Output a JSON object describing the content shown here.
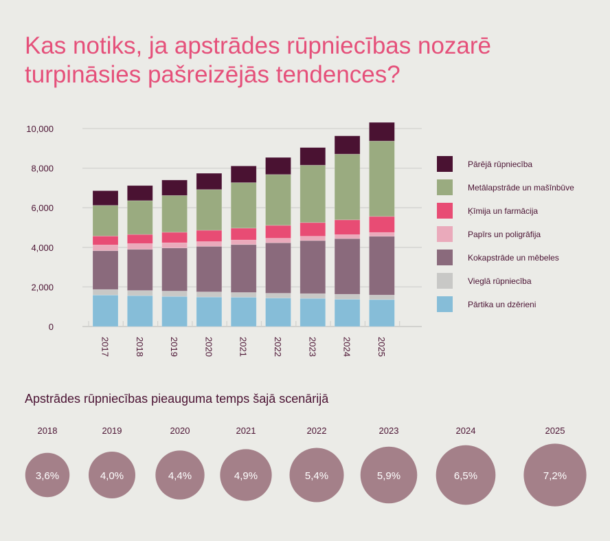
{
  "title": "Kas notiks, ja apstrādes rūpniecības nozarē turpināsies pašreizējās tendences?",
  "chart_data": [
    {
      "type": "bar",
      "stacked": true,
      "categories": [
        "2017",
        "2018",
        "2019",
        "2020",
        "2021",
        "2022",
        "2023",
        "2024",
        "2025"
      ],
      "ylim": [
        0,
        10500
      ],
      "yticks": [
        0,
        2000,
        4000,
        6000,
        8000,
        10000
      ],
      "ytick_labels": [
        "0",
        "2,000",
        "4,000",
        "6,000",
        "8,000",
        "10,000"
      ],
      "grid": true,
      "legend_position": "right",
      "series": [
        {
          "name": "Pārtika un dzērieni",
          "color": "#86bdd8",
          "values": [
            1590,
            1560,
            1520,
            1490,
            1480,
            1440,
            1420,
            1380,
            1360
          ]
        },
        {
          "name": "Vieglā rūpniecība",
          "color": "#c8c8c6",
          "values": [
            280,
            260,
            270,
            260,
            240,
            240,
            240,
            250,
            230
          ]
        },
        {
          "name": "Kokapstrāde un mēbeles",
          "color": "#8a6a7c",
          "values": [
            1960,
            2080,
            2180,
            2300,
            2420,
            2550,
            2680,
            2810,
            2970
          ]
        },
        {
          "name": "Papīrs un poligrāfija",
          "color": "#eaaabb",
          "values": [
            290,
            290,
            260,
            240,
            230,
            230,
            220,
            200,
            190
          ]
        },
        {
          "name": "Ķīmija un farmācija",
          "color": "#e84c74",
          "values": [
            450,
            460,
            530,
            570,
            600,
            650,
            690,
            750,
            810
          ]
        },
        {
          "name": "Metālapstrāde un mašīnbūve",
          "color": "#9aab80",
          "values": [
            1550,
            1710,
            1860,
            2060,
            2300,
            2570,
            2900,
            3320,
            3810
          ]
        },
        {
          "name": "Pārējā rūpniecība",
          "color": "#4a1232",
          "values": [
            740,
            760,
            780,
            820,
            840,
            860,
            890,
            920,
            940
          ]
        }
      ]
    },
    {
      "type": "bubble",
      "title": "Apstrādes rūpniecības pieauguma temps šajā scenārijā",
      "categories": [
        "2018",
        "2019",
        "2020",
        "2021",
        "2022",
        "2023",
        "2024",
        "2025"
      ],
      "values": [
        3.6,
        4.0,
        4.4,
        4.9,
        5.4,
        5.9,
        6.5,
        7.2
      ],
      "labels": [
        "3,6%",
        "4,0%",
        "4,4%",
        "4,9%",
        "5,4%",
        "5,9%",
        "6,5%",
        "7,2%"
      ],
      "color": "#a48089"
    }
  ]
}
